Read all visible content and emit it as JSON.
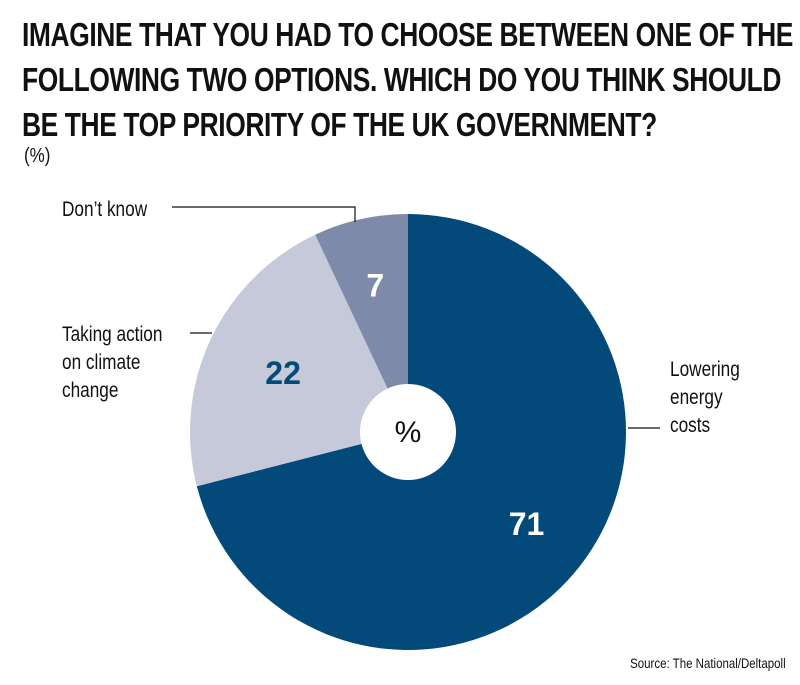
{
  "chart_data": {
    "type": "pie",
    "title_lines": [
      "IMAGINE THAT YOU HAD TO CHOOSE BETWEEN ONE OF THE",
      "FOLLOWING TWO OPTIONS. WHICH DO YOU THINK SHOULD",
      "BE THE TOP PRIORITY OF THE UK GOVERNMENT?"
    ],
    "unit_label": "(%)",
    "center_label": "%",
    "slices": [
      {
        "label": "Lowering energy costs",
        "label_lines": [
          "Lowering",
          "energy",
          "costs"
        ],
        "value": 71,
        "color": "#034a7a",
        "value_color": "#ffffff"
      },
      {
        "label": "Taking action on climate change",
        "label_lines": [
          "Taking action",
          "on climate",
          "change"
        ],
        "value": 22,
        "color": "#c5c9da",
        "value_color": "#034a7a"
      },
      {
        "label": "Don't know",
        "label_lines": [
          "Don’t know"
        ],
        "value": 7,
        "color": "#7e8aaa",
        "value_color": "#ffffff"
      }
    ],
    "source": "Source: The National/Deltapoll"
  }
}
